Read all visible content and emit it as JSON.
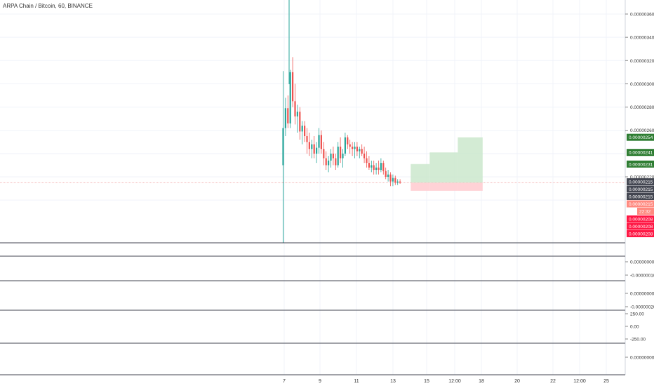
{
  "chart_data": {
    "type": "candlestick",
    "title": "ARPA Chain / Bitcoin, 60, BINANCE",
    "x_tick_labels": [
      "7",
      "9",
      "11",
      "13",
      "15",
      "12:00",
      "18",
      "20",
      "22",
      "12:00",
      "25"
    ],
    "main_panel": {
      "y_ticks": [
        "0.00000360",
        "0.00000340",
        "0.00000320",
        "0.00000300",
        "0.00000280",
        "0.00000260",
        "0.00000220"
      ],
      "ylim": [
        1.94e-06,
        3.66e-06
      ],
      "current_price": 2.15e-06,
      "candles": [
        {
          "t": 0,
          "o": 2.3e-06,
          "h": 3.11e-06,
          "l": 1.94e-06,
          "c": 2.62e-06
        },
        {
          "t": 1,
          "o": 2.62e-06,
          "h": 2.88e-06,
          "l": 2.55e-06,
          "c": 2.79e-06
        },
        {
          "t": 2,
          "o": 2.79e-06,
          "h": 2.9e-06,
          "l": 2.62e-06,
          "c": 2.66e-06
        },
        {
          "t": 3,
          "o": 2.66e-06,
          "h": 3.12e-06,
          "l": 2.62e-06,
          "c": 3.1e-06
        },
        {
          "t": 4,
          "o": 3.1e-06,
          "h": 3.23e-06,
          "l": 2.8e-06,
          "c": 2.85e-06
        },
        {
          "t": 5,
          "o": 2.85e-06,
          "h": 3e-06,
          "l": 2.65e-06,
          "c": 2.72e-06
        },
        {
          "t": 6,
          "o": 2.72e-06,
          "h": 2.82e-06,
          "l": 2.58e-06,
          "c": 2.76e-06
        },
        {
          "t": 7,
          "o": 2.76e-06,
          "h": 2.8e-06,
          "l": 2.52e-06,
          "c": 2.59e-06
        },
        {
          "t": 8,
          "o": 2.59e-06,
          "h": 2.68e-06,
          "l": 2.48e-06,
          "c": 2.64e-06
        },
        {
          "t": 9,
          "o": 2.64e-06,
          "h": 2.68e-06,
          "l": 2.5e-06,
          "c": 2.55e-06
        },
        {
          "t": 10,
          "o": 2.55e-06,
          "h": 2.62e-06,
          "l": 2.4e-06,
          "c": 2.5e-06
        },
        {
          "t": 11,
          "o": 2.5e-06,
          "h": 2.58e-06,
          "l": 2.38e-06,
          "c": 2.44e-06
        },
        {
          "t": 12,
          "o": 2.44e-06,
          "h": 2.52e-06,
          "l": 2.36e-06,
          "c": 2.48e-06
        },
        {
          "t": 13,
          "o": 2.48e-06,
          "h": 2.55e-06,
          "l": 2.36e-06,
          "c": 2.4e-06
        },
        {
          "t": 14,
          "o": 2.4e-06,
          "h": 2.5e-06,
          "l": 2.32e-06,
          "c": 2.45e-06
        },
        {
          "t": 15,
          "o": 2.45e-06,
          "h": 2.62e-06,
          "l": 2.4e-06,
          "c": 2.56e-06
        },
        {
          "t": 16,
          "o": 2.56e-06,
          "h": 2.6e-06,
          "l": 2.4e-06,
          "c": 2.44e-06
        },
        {
          "t": 17,
          "o": 2.44e-06,
          "h": 2.5e-06,
          "l": 2.3e-06,
          "c": 2.36e-06
        },
        {
          "t": 18,
          "o": 2.36e-06,
          "h": 2.42e-06,
          "l": 2.26e-06,
          "c": 2.3e-06
        },
        {
          "t": 19,
          "o": 2.3e-06,
          "h": 2.38e-06,
          "l": 2.24e-06,
          "c": 2.34e-06
        },
        {
          "t": 20,
          "o": 2.34e-06,
          "h": 2.44e-06,
          "l": 2.28e-06,
          "c": 2.4e-06
        },
        {
          "t": 21,
          "o": 2.4e-06,
          "h": 2.46e-06,
          "l": 2.3e-06,
          "c": 2.36e-06
        },
        {
          "t": 22,
          "o": 2.36e-06,
          "h": 2.4e-06,
          "l": 2.26e-06,
          "c": 2.3e-06
        },
        {
          "t": 23,
          "o": 2.3e-06,
          "h": 2.5e-06,
          "l": 2.28e-06,
          "c": 2.46e-06
        },
        {
          "t": 24,
          "o": 2.46e-06,
          "h": 2.54e-06,
          "l": 2.32e-06,
          "c": 2.36e-06
        },
        {
          "t": 25,
          "o": 2.36e-06,
          "h": 2.44e-06,
          "l": 2.28e-06,
          "c": 2.4e-06
        },
        {
          "t": 26,
          "o": 2.4e-06,
          "h": 2.58e-06,
          "l": 2.38e-06,
          "c": 2.54e-06
        },
        {
          "t": 27,
          "o": 2.54e-06,
          "h": 2.56e-06,
          "l": 2.44e-06,
          "c": 2.48e-06
        },
        {
          "t": 28,
          "o": 2.48e-06,
          "h": 2.52e-06,
          "l": 2.4e-06,
          "c": 2.46e-06
        },
        {
          "t": 29,
          "o": 2.46e-06,
          "h": 2.5e-06,
          "l": 2.38e-06,
          "c": 2.44e-06
        },
        {
          "t": 30,
          "o": 2.44e-06,
          "h": 2.5e-06,
          "l": 2.36e-06,
          "c": 2.46e-06
        },
        {
          "t": 31,
          "o": 2.46e-06,
          "h": 2.5e-06,
          "l": 2.38e-06,
          "c": 2.42e-06
        },
        {
          "t": 32,
          "o": 2.42e-06,
          "h": 2.46e-06,
          "l": 2.36e-06,
          "c": 2.44e-06
        },
        {
          "t": 33,
          "o": 2.44e-06,
          "h": 2.48e-06,
          "l": 2.38e-06,
          "c": 2.4e-06
        },
        {
          "t": 34,
          "o": 2.4e-06,
          "h": 2.46e-06,
          "l": 2.32e-06,
          "c": 2.36e-06
        },
        {
          "t": 35,
          "o": 2.36e-06,
          "h": 2.42e-06,
          "l": 2.28e-06,
          "c": 2.32e-06
        },
        {
          "t": 36,
          "o": 2.32e-06,
          "h": 2.38e-06,
          "l": 2.26e-06,
          "c": 2.28e-06
        },
        {
          "t": 37,
          "o": 2.28e-06,
          "h": 2.34e-06,
          "l": 2.24e-06,
          "c": 2.3e-06
        },
        {
          "t": 38,
          "o": 2.3e-06,
          "h": 2.34e-06,
          "l": 2.22e-06,
          "c": 2.26e-06
        },
        {
          "t": 39,
          "o": 2.26e-06,
          "h": 2.32e-06,
          "l": 2.22e-06,
          "c": 2.28e-06
        },
        {
          "t": 40,
          "o": 2.28e-06,
          "h": 2.34e-06,
          "l": 2.22e-06,
          "c": 2.26e-06
        },
        {
          "t": 41,
          "o": 2.26e-06,
          "h": 2.36e-06,
          "l": 2.24e-06,
          "c": 2.32e-06
        },
        {
          "t": 42,
          "o": 2.32e-06,
          "h": 2.34e-06,
          "l": 2.22e-06,
          "c": 2.25e-06
        },
        {
          "t": 43,
          "o": 2.25e-06,
          "h": 2.28e-06,
          "l": 2.18e-06,
          "c": 2.2e-06
        },
        {
          "t": 44,
          "o": 2.2e-06,
          "h": 2.26e-06,
          "l": 2.16e-06,
          "c": 2.22e-06
        },
        {
          "t": 45,
          "o": 2.22e-06,
          "h": 2.24e-06,
          "l": 2.12e-06,
          "c": 2.16e-06
        },
        {
          "t": 46,
          "o": 2.16e-06,
          "h": 2.22e-06,
          "l": 2.12e-06,
          "c": 2.19e-06
        },
        {
          "t": 47,
          "o": 2.19e-06,
          "h": 2.21e-06,
          "l": 2.13e-06,
          "c": 2.15e-06
        },
        {
          "t": 48,
          "o": 2.15e-06,
          "h": 2.18e-06,
          "l": 2.13e-06,
          "c": 2.16e-06
        },
        {
          "t": 49,
          "o": 2.16e-06,
          "h": 2.18e-06,
          "l": 2.14e-06,
          "c": 2.15e-06
        }
      ],
      "targets": [
        {
          "label": "0.00000254",
          "value": 2.54e-06,
          "color": "#2e7d32"
        },
        {
          "label": "0.00000241",
          "value": 2.41e-06,
          "color": "#2e7d32"
        },
        {
          "label": "0.00000231",
          "value": 2.31e-06,
          "color": "#2e7d32"
        }
      ],
      "price_tags": [
        {
          "label": "0.00000215",
          "color": "#434651"
        },
        {
          "label": "0.00000215",
          "color": "#434651"
        },
        {
          "label": "0.00000215",
          "color": "#434651"
        },
        {
          "label": "0.00000215",
          "color": "#ff8a80"
        }
      ],
      "countdown": "22:32",
      "stops": [
        {
          "label": "0.00000208",
          "value": 2.08e-06,
          "color": "#ff1744"
        },
        {
          "label": "0.00000208",
          "value": 2.08e-06,
          "color": "#ff1744"
        },
        {
          "label": "0.00000208",
          "value": 2.08e-06,
          "color": "#ff1744"
        }
      ],
      "zones": [
        {
          "x_from": 0.628,
          "x_to": 0.657,
          "entry": 2.15e-06,
          "target": 2.31e-06,
          "stop": 2.08e-06
        },
        {
          "x_from": 0.657,
          "x_to": 0.7,
          "entry": 2.15e-06,
          "target": 2.41e-06,
          "stop": 2.08e-06
        },
        {
          "x_from": 0.7,
          "x_to": 0.738,
          "entry": 2.15e-06,
          "target": 2.54e-06,
          "stop": 2.08e-06
        }
      ]
    },
    "sub_panels": [
      {
        "ticks": [
          "0.00000000",
          "-0.00000010"
        ]
      },
      {
        "ticks": [
          "0.00000000",
          "-0.00000020"
        ]
      },
      {
        "ticks": [
          "250.00",
          "0.00",
          "-250.00"
        ]
      },
      {
        "ticks": [
          "0.00000000"
        ]
      }
    ],
    "colors": {
      "up": "#26a69a",
      "down": "#ef5350",
      "zone_profit": "#c8e6c9",
      "zone_loss": "#ffcdd2"
    }
  }
}
